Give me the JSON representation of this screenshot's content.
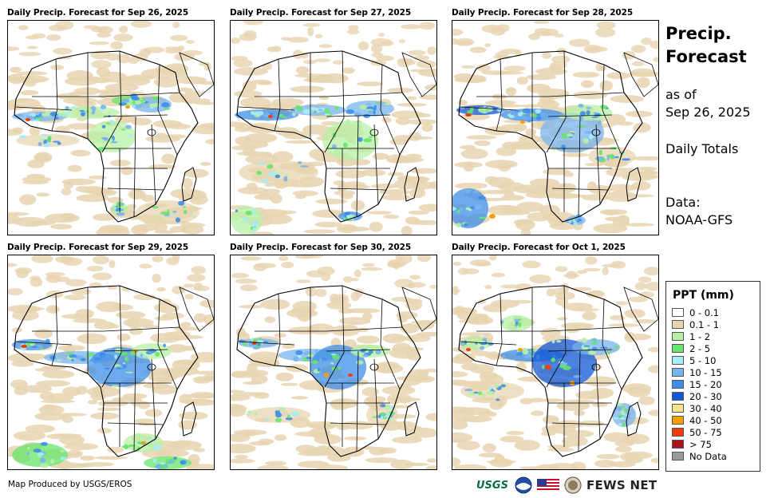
{
  "panels": [
    {
      "title": "Daily Precip. Forecast for Sep 26, 2025"
    },
    {
      "title": "Daily Precip. Forecast for Sep 27, 2025"
    },
    {
      "title": "Daily Precip. Forecast for Sep 28, 2025"
    },
    {
      "title": "Daily Precip. Forecast for Sep 29, 2025"
    },
    {
      "title": "Daily Precip. Forecast for Sep 30, 2025"
    },
    {
      "title": "Daily Precip. Forecast for Oct 1, 2025"
    }
  ],
  "sidebar": {
    "title_line1": "Precip.",
    "title_line2": "Forecast",
    "as_of_label": "as of",
    "as_of_date": "Sep 26, 2025",
    "totals_label": "Daily Totals",
    "data_label": "Data:",
    "data_source": "NOAA-GFS"
  },
  "legend": {
    "title": "PPT (mm)",
    "items": [
      {
        "label": "0 - 0.1",
        "color": "#ffffff"
      },
      {
        "label": "0.1 - 1",
        "color": "#e8d5b0"
      },
      {
        "label": "1 - 2",
        "color": "#b7f0a6"
      },
      {
        "label": "2 - 5",
        "color": "#66e66a"
      },
      {
        "label": "5 - 10",
        "color": "#a8ecf5"
      },
      {
        "label": "10 - 15",
        "color": "#78b4ee"
      },
      {
        "label": "15 - 20",
        "color": "#3d8ee8"
      },
      {
        "label": "20 - 30",
        "color": "#1257d6"
      },
      {
        "label": "30 - 40",
        "color": "#f6e38a"
      },
      {
        "label": "40 - 50",
        "color": "#f5a000"
      },
      {
        "label": "50 - 75",
        "color": "#f03c0a"
      },
      {
        "label": "> 75",
        "color": "#a8141b"
      },
      {
        "label": "No Data",
        "color": "#9a9a9a"
      }
    ]
  },
  "footer": {
    "credit": "Map Produced by USGS/EROS",
    "usgs_logo_text": "USGS",
    "fews_logo_text": "FEWS NET"
  }
}
